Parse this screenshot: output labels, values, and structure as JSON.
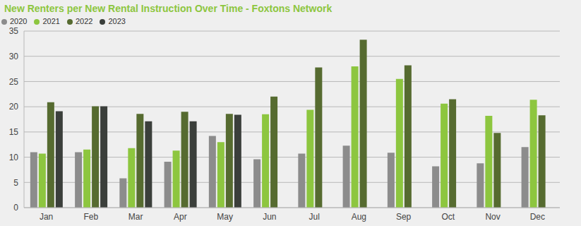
{
  "chart_data": {
    "type": "bar",
    "title": "New Renters per New Rental Instruction Over Time - Foxtons Network",
    "categories": [
      "Jan",
      "Feb",
      "Mar",
      "Apr",
      "May",
      "Jun",
      "Jul",
      "Aug",
      "Sep",
      "Oct",
      "Nov",
      "Dec"
    ],
    "series": [
      {
        "name": "2020",
        "color": "#8c8c8c",
        "values": [
          11,
          11,
          5.8,
          9.1,
          14.2,
          9.6,
          10.7,
          12.3,
          10.9,
          8.2,
          8.8,
          12.0
        ]
      },
      {
        "name": "2021",
        "color": "#8dc63f",
        "values": [
          10.7,
          11.5,
          11.8,
          11.3,
          13,
          18.5,
          19.4,
          28,
          25.5,
          20.6,
          18.2,
          21.4
        ]
      },
      {
        "name": "2022",
        "color": "#566b30",
        "values": [
          20.9,
          20.1,
          18.6,
          19,
          18.6,
          22,
          27.8,
          33.3,
          28.2,
          21.5,
          14.8,
          18.3
        ]
      },
      {
        "name": "2023",
        "color": "#3b3f3b",
        "values": [
          19.1,
          20.1,
          17.1,
          17.1,
          18.4,
          null,
          null,
          null,
          null,
          null,
          null,
          null
        ]
      }
    ],
    "ylim": [
      0,
      35
    ],
    "yticks": [
      0,
      5,
      10,
      15,
      20,
      25,
      30,
      35
    ],
    "grid": true,
    "legend": "top-left"
  }
}
